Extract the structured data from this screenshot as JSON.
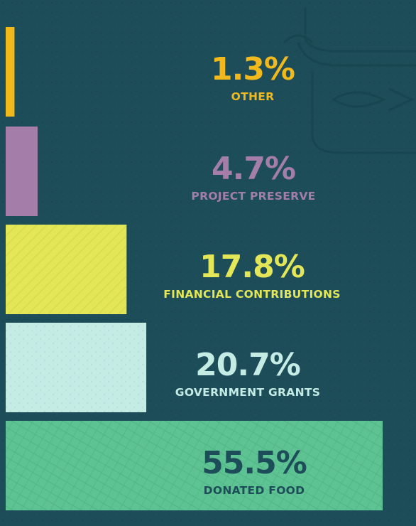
{
  "chart_data": {
    "type": "bar",
    "orientation": "horizontal",
    "title": "",
    "xlabel": "",
    "ylabel": "",
    "xlim": [
      0,
      55.5
    ],
    "grid": false,
    "categories": [
      "OTHER",
      "PROJECT PRESERVE",
      "FINANCIAL CONTRIBUTIONS",
      "GOVERNMENT GRANTS",
      "DONATED  FOOD"
    ],
    "values": [
      1.3,
      4.7,
      17.8,
      20.7,
      55.5
    ],
    "value_labels": [
      "1.3%",
      "4.7%",
      "17.8%",
      "20.7%",
      "55.5%"
    ],
    "colors": [
      "#f2b91c",
      "#a47ea9",
      "#e3e657",
      "#c5ece4",
      "#5dc393"
    ],
    "label_colors": [
      "#f2b91c",
      "#a47ea9",
      "#e3e657",
      "#c5ece4",
      "#1d4d58"
    ]
  },
  "background": {
    "color": "#1d4d58",
    "decorative_icon": "jar-icon"
  }
}
